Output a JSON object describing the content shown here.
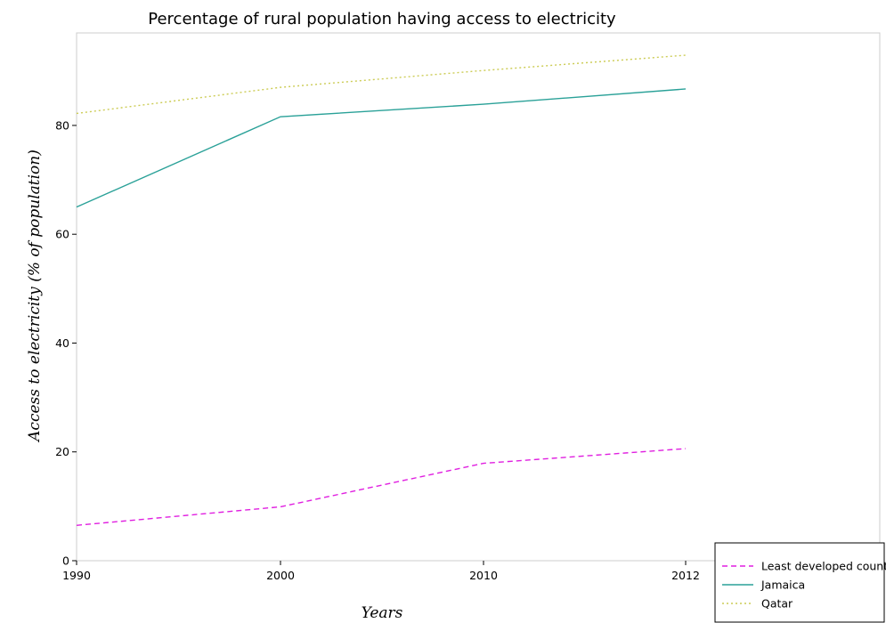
{
  "chart_data": {
    "type": "line",
    "title": "Percentage of rural population having access to electricity",
    "xlabel": "Years",
    "ylabel": "Access to electricity (% of population)",
    "categories": [
      "1990",
      "2000",
      "2010",
      "2012"
    ],
    "yticks": [
      0,
      20,
      40,
      60,
      80
    ],
    "ylim": [
      0,
      97
    ],
    "grid": false,
    "legend_position": "bottom-right",
    "series": [
      {
        "name": "Least developed countries",
        "color": "#e01fe0",
        "dash": "dashed",
        "values": [
          6.5,
          9.9,
          17.9,
          20.6
        ]
      },
      {
        "name": "Jamaica",
        "color": "#2aa198",
        "dash": "solid",
        "values": [
          65.0,
          81.6,
          83.9,
          86.7
        ]
      },
      {
        "name": "Qatar",
        "color": "#cccc55",
        "dash": "dotted",
        "values": [
          82.2,
          87.0,
          90.1,
          92.9
        ]
      }
    ]
  }
}
